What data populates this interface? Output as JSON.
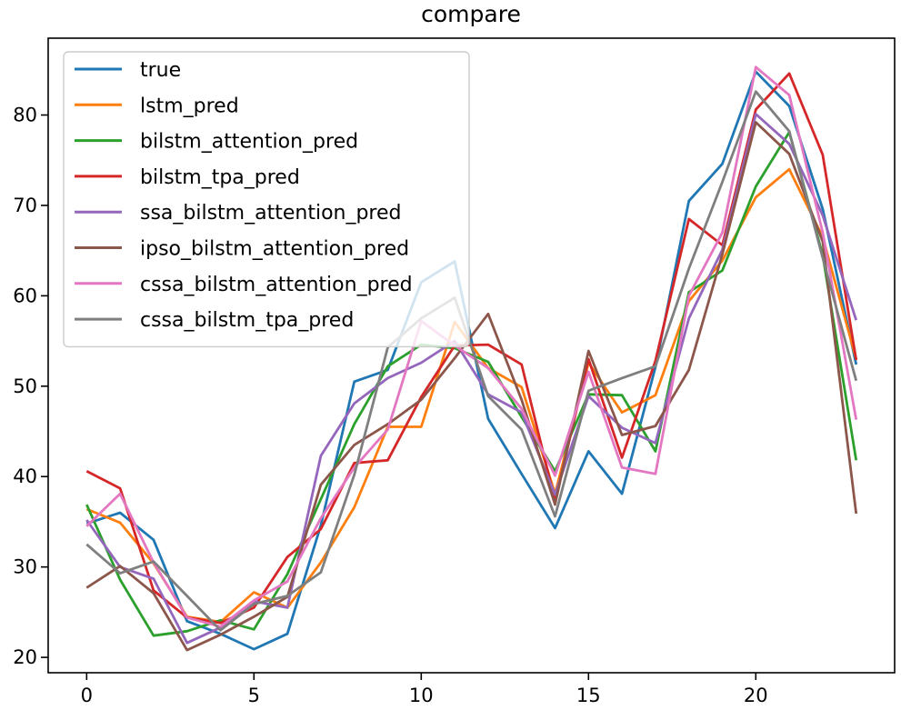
{
  "chart_data": {
    "type": "line",
    "title": "compare",
    "xlabel": "",
    "ylabel": "",
    "xlim": [
      -1.15,
      24.15
    ],
    "ylim": [
      18.3,
      88.5
    ],
    "xticks": [
      0,
      5,
      10,
      15,
      20
    ],
    "yticks": [
      20,
      30,
      40,
      50,
      60,
      70,
      80
    ],
    "grid": false,
    "legend_position": "top-left",
    "x": [
      0,
      1,
      2,
      3,
      4,
      5,
      6,
      7,
      8,
      9,
      10,
      11,
      12,
      13,
      14,
      15,
      16,
      17,
      18,
      19,
      20,
      21,
      22,
      23
    ],
    "series": [
      {
        "name": "true",
        "color": "#1f77b4",
        "values": [
          34.8,
          36.0,
          33.0,
          24.0,
          22.6,
          20.9,
          22.6,
          34.6,
          50.5,
          51.8,
          61.5,
          63.8,
          46.4,
          40.3,
          34.3,
          42.8,
          38.1,
          52.1,
          70.5,
          74.6,
          84.8,
          81.0,
          69.6,
          52.4
        ]
      },
      {
        "name": "lstm_pred",
        "color": "#ff7f0e",
        "values": [
          36.4,
          34.9,
          30.4,
          24.5,
          23.9,
          27.2,
          25.5,
          30.5,
          36.6,
          45.5,
          45.5,
          57.1,
          52.0,
          49.9,
          38.1,
          52.6,
          47.1,
          49.0,
          59.4,
          63.9,
          70.9,
          74.0,
          66.5,
          53.0
        ]
      },
      {
        "name": "bilstm_attention_pred",
        "color": "#2ca02c",
        "values": [
          36.9,
          28.6,
          22.4,
          22.9,
          24.1,
          23.1,
          29.2,
          37.5,
          45.8,
          52.2,
          54.6,
          54.2,
          52.7,
          46.6,
          40.6,
          49.1,
          49.0,
          42.8,
          60.4,
          62.8,
          72.1,
          78.1,
          64.5,
          41.8
        ]
      },
      {
        "name": "bilstm_tpa_pred",
        "color": "#d62728",
        "values": [
          40.6,
          38.7,
          27.4,
          24.4,
          23.8,
          25.5,
          31.1,
          34.2,
          41.5,
          41.8,
          48.8,
          54.5,
          54.6,
          52.4,
          37.3,
          53.0,
          42.1,
          52.8,
          68.5,
          65.6,
          80.6,
          84.6,
          75.6,
          52.9
        ]
      },
      {
        "name": "ssa_bilstm_attention_pred",
        "color": "#9467bd",
        "values": [
          35.2,
          30.0,
          28.7,
          21.6,
          23.3,
          26.2,
          25.5,
          42.3,
          48.1,
          50.9,
          52.6,
          55.0,
          49.1,
          47.1,
          38.0,
          48.9,
          45.4,
          43.7,
          57.5,
          65.1,
          80.1,
          76.8,
          68.9,
          57.3
        ]
      },
      {
        "name": "ipso_bilstm_attention_pred",
        "color": "#8c564b",
        "values": [
          27.7,
          30.1,
          27.1,
          20.8,
          22.5,
          24.5,
          26.7,
          39.1,
          43.5,
          45.8,
          48.5,
          53.1,
          58.0,
          48.5,
          36.9,
          53.9,
          44.6,
          45.6,
          51.8,
          64.6,
          79.2,
          75.7,
          66.0,
          35.9
        ]
      },
      {
        "name": "cssa_bilstm_attention_pred",
        "color": "#e377c2",
        "values": [
          34.5,
          38.1,
          30.5,
          24.4,
          23.4,
          26.3,
          28.4,
          35.4,
          41.0,
          45.2,
          57.2,
          54.5,
          52.0,
          47.5,
          40.1,
          51.6,
          41.0,
          40.3,
          60.0,
          67.0,
          85.3,
          82.2,
          67.0,
          46.3
        ]
      },
      {
        "name": "cssa_bilstm_tpa_pred",
        "color": "#7f7f7f",
        "values": [
          32.5,
          29.3,
          30.6,
          26.8,
          23.0,
          25.9,
          26.8,
          29.4,
          40.2,
          54.3,
          57.5,
          59.8,
          48.9,
          45.2,
          35.6,
          49.5,
          50.9,
          52.2,
          63.0,
          72.6,
          82.6,
          78.2,
          64.2,
          50.6
        ]
      }
    ]
  }
}
